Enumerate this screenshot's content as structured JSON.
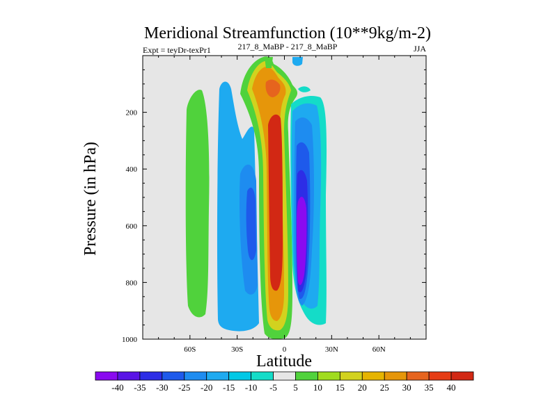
{
  "chart_data": {
    "type": "heatmap",
    "title": "Meridional Streamfunction (10**9kg/m-2)",
    "subtitle_left": "Expt = teyDr-texPr1",
    "subtitle_center": "217_8_MaBP - 217_8_MaBP",
    "subtitle_right": "JJA",
    "xlabel": "Latitude",
    "ylabel": "Pressure (in hPa)",
    "xlim": [
      -90,
      90
    ],
    "ylim": [
      1000,
      0
    ],
    "x_ticks": [
      {
        "value": -60,
        "label": "60S"
      },
      {
        "value": -30,
        "label": "30S"
      },
      {
        "value": 0,
        "label": "0"
      },
      {
        "value": 30,
        "label": "30N"
      },
      {
        "value": 60,
        "label": "60N"
      }
    ],
    "y_ticks": [
      {
        "value": 200,
        "label": "200"
      },
      {
        "value": 400,
        "label": "400"
      },
      {
        "value": 600,
        "label": "600"
      },
      {
        "value": 800,
        "label": "800"
      },
      {
        "value": 1000,
        "label": "1000"
      }
    ],
    "missing_color": "#e6e6e6",
    "colorbar": {
      "labels": [
        "-40",
        "-35",
        "-30",
        "-25",
        "-20",
        "-15",
        "-10",
        "-5",
        "5",
        "10",
        "15",
        "20",
        "25",
        "30",
        "35",
        "40"
      ],
      "colors": [
        "#8a0af0",
        "#5a14e6",
        "#2d2de6",
        "#1e5aeb",
        "#1e8cf0",
        "#1eaaf0",
        "#00c8e6",
        "#14dcc8",
        "#e6e6e6",
        "#50d23c",
        "#a0dc1e",
        "#d2d21e",
        "#e6b400",
        "#e6960a",
        "#e6641e",
        "#e63c14",
        "#d22814"
      ]
    },
    "cells": [
      {
        "name": "sh-positive-cell",
        "lat_range": [
          -62,
          -51
        ],
        "p_range": [
          120,
          925
        ],
        "max": 10,
        "color": "#50d23c"
      },
      {
        "name": "sh-subtropical-negative-outer",
        "lat_range": [
          -42,
          -14
        ],
        "p_range": [
          80,
          970
        ],
        "min": -15,
        "color": "#1eaaf0"
      },
      {
        "name": "sh-subtropical-negative-core",
        "lat_range": [
          -28,
          -18
        ],
        "p_range": [
          320,
          770
        ],
        "min": -25,
        "color": "#1e8cf0"
      },
      {
        "name": "equatorial-positive-cell",
        "lat_range": [
          -14,
          6
        ],
        "p_range": [
          5,
          985
        ],
        "max": 40,
        "color": "#d22814"
      },
      {
        "name": "nh-negative-cell",
        "lat_range": [
          2,
          28
        ],
        "p_range": [
          100,
          960
        ],
        "min": -40,
        "color": "#8a0af0"
      }
    ]
  }
}
